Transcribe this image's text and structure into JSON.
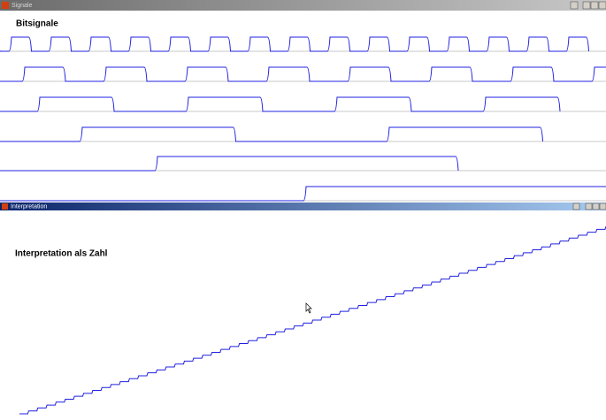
{
  "signal_window": {
    "title": "Signale",
    "label": "Bitsignale"
  },
  "interpretation_window": {
    "title": "Interpretation",
    "label": "Interpretation als Zahl"
  }
}
